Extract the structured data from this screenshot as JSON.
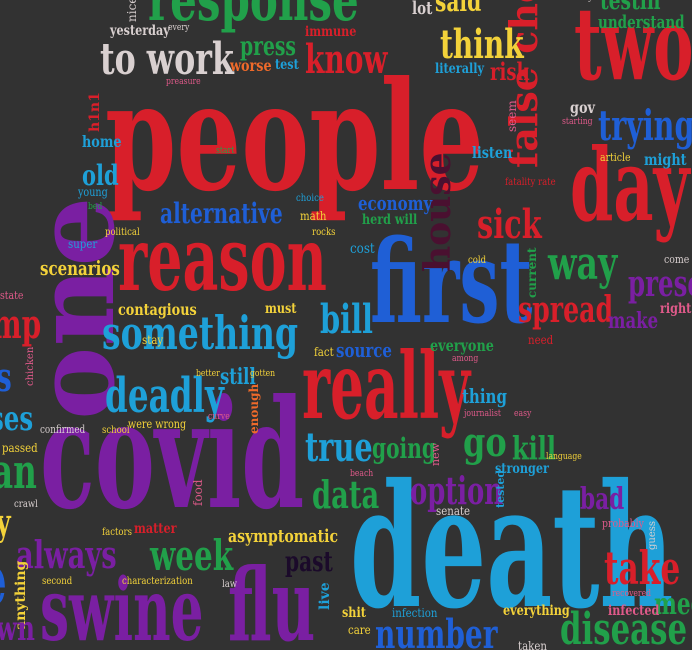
{
  "background": "#323232",
  "palette": {
    "red": "#d81f2a",
    "purple": "#7a1fa2",
    "blue": "#1f5fd6",
    "cyan": "#1ea0d8",
    "green": "#21a04a",
    "yellow": "#f3d23a",
    "orange": "#ef6a2a",
    "pink": "#e05a8a",
    "gray": "#d9d0d0",
    "darkred": "#9a1030",
    "brown": "#b07040",
    "teal": "#1aa7a0"
  },
  "words": {
    "people": "people",
    "death": "death",
    "covid": "covid",
    "first": "first",
    "reason": "reason",
    "really": "really",
    "one": "one",
    "two": "two",
    "day": "day",
    "swine": "swine",
    "flu": "flu",
    "response": "response",
    "something": "something",
    "deadly": "deadly",
    "week": "week",
    "always": "always",
    "false_choice": "false choice",
    "take": "take",
    "disease": "disease",
    "number": "number",
    "option": "option",
    "data": "data",
    "trying": "trying",
    "way": "way",
    "spread": "spread",
    "know": "know",
    "think": "think",
    "to_work": "to work",
    "sick": "sick",
    "true": "true",
    "go": "go",
    "kill": "kill",
    "alternative": "alternative",
    "house": "house",
    "bill": "bill",
    "press": "press",
    "going": "going",
    "scenarios": "scenarios",
    "contagious": "contagious",
    "source": "source",
    "economy": "economy",
    "past": "past",
    "asymptomatic": "asymptomatic",
    "bad": "bad",
    "make": "make",
    "present": "prese",
    "med": "med",
    "thing": "thing",
    "everyone": "everyone",
    "still": "still",
    "worse": "worse",
    "test": "test",
    "immune": "immune",
    "yesterday": "yesterday",
    "literally": "literally",
    "risk": "risk",
    "understand": "understand",
    "said": "said",
    "lot": "lot",
    "gov": "gov",
    "might": "might",
    "article": "article",
    "listen": "listen",
    "home": "home",
    "old": "old",
    "young": "young",
    "political": "political",
    "super": "super",
    "math": "math",
    "choice": "choice",
    "herd_will": "herd will",
    "cost": "cost",
    "cold": "cold",
    "current": "current",
    "rocks": "rocks",
    "must": "must",
    "fact": "fact",
    "among": "among",
    "need": "need",
    "stay": "stay",
    "better": "better",
    "gotten": "gotten",
    "curve": "curve",
    "enough": "enough",
    "were_wrong": "were wrong",
    "school": "school",
    "confirmed": "confirmed",
    "passed": "passed",
    "chicken": "chicken",
    "crawl": "crawl",
    "food": "food",
    "factors": "factors",
    "matter": "matter",
    "second": "second",
    "characterization": "characterization",
    "law": "law",
    "anything": "anything",
    "live": "live",
    "shit": "shit",
    "care": "care",
    "infection": "infection",
    "everything": "everything",
    "infected": "infected",
    "recovered": "recovered",
    "probably": "probably",
    "guess": "guess",
    "senate": "senate",
    "tested": "tested",
    "stronger": "stronger",
    "language": "language",
    "new": "new",
    "beach": "beach",
    "journalist": "journalist",
    "easy": "easy",
    "right": "right",
    "come": "come",
    "fatality_rate": "fatality rate",
    "seem": "seem",
    "starting": "starting",
    "h1n1": "h1n1",
    "start": "start",
    "bed": "bed",
    "every": "every",
    "nice": "nice",
    "preasure": "preasure",
    "exactly": "exactly",
    "state": "state",
    "testing": "testin",
    "taken": "taken",
    "top_frag_e": "e",
    "top_frag_mp": "mp",
    "top_frag_ses": "ses",
    "top_frag_an": "an",
    "top_frag_y": "y",
    "top_frag_wn": "wn",
    "left_frag_s": "s"
  }
}
